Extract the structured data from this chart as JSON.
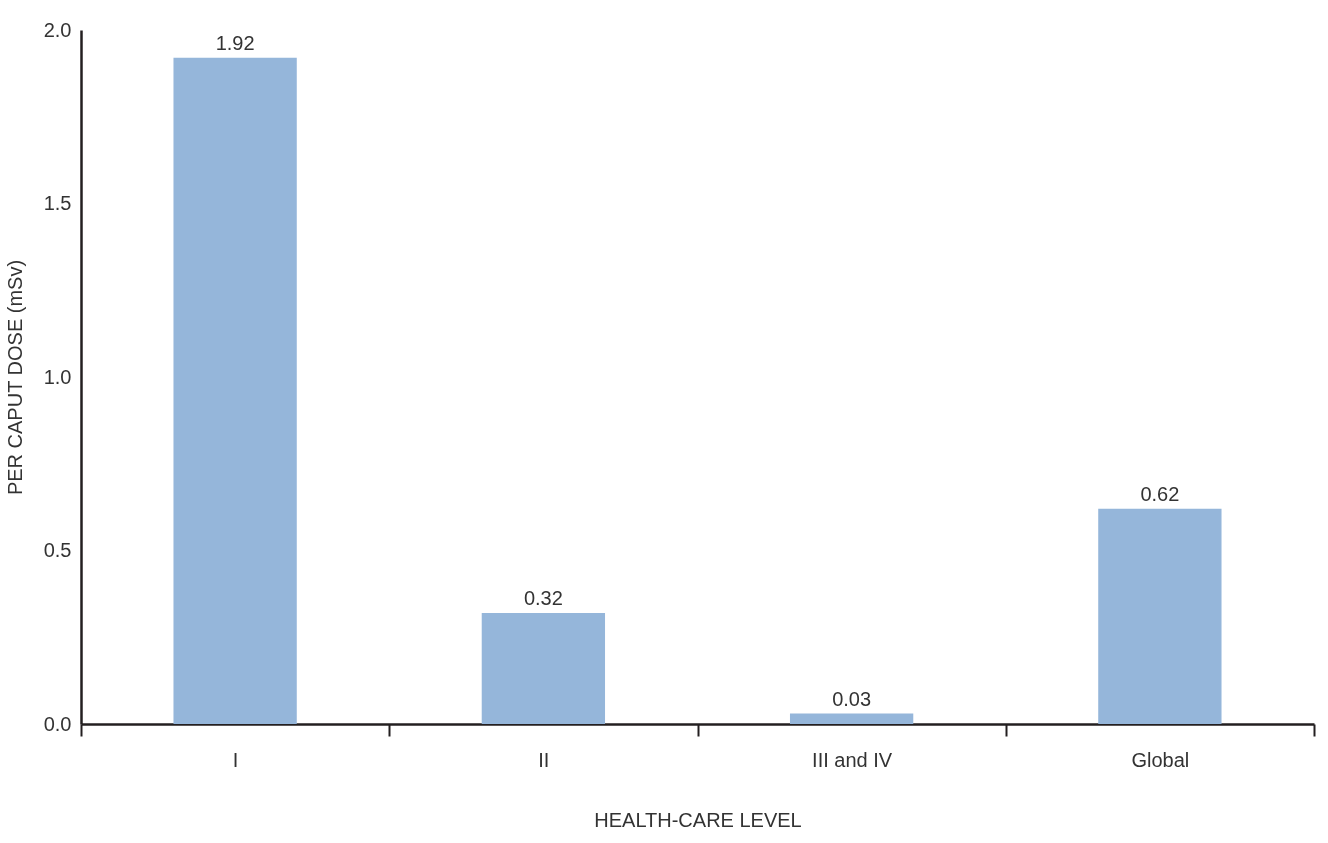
{
  "chart_data": {
    "type": "bar",
    "xlabel": "HEALTH-CARE LEVEL",
    "ylabel": "PER CAPUT DOSE (mSv)",
    "categories": [
      "I",
      "II",
      "III and IV",
      "Global"
    ],
    "values": [
      1.92,
      0.32,
      0.03,
      0.62
    ],
    "color": "#95b6da",
    "ylim": [
      0,
      2.0
    ],
    "yticks": [
      {
        "value": 0,
        "label": "0.0"
      },
      0.5,
      {
        "value": 1,
        "label": "1.0"
      },
      1.5,
      {
        "value": 2,
        "label": "2.0"
      }
    ],
    "data_labels": true
  }
}
